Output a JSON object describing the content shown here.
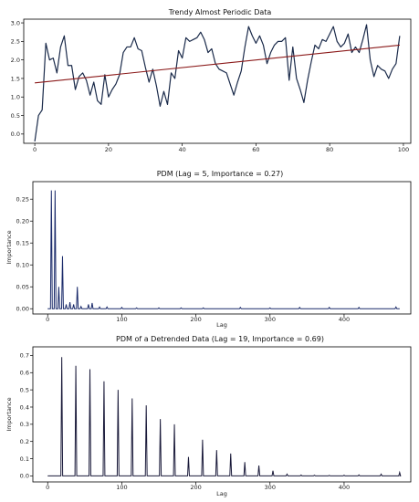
{
  "chart_data": [
    {
      "type": "line",
      "title": "Trendy Almost Periodic Data",
      "xlabel": "",
      "ylabel": "",
      "xlim": [
        -3,
        102
      ],
      "ylim": [
        -0.25,
        3.1
      ],
      "xticks": [
        0,
        20,
        40,
        60,
        80,
        100
      ],
      "yticks": [
        0.0,
        0.5,
        1.0,
        1.5,
        2.0,
        2.5,
        3.0
      ],
      "ytick_labels": [
        "0.0",
        "0.5",
        "1.0",
        "1.5",
        "2.0",
        "2.5",
        "3.0"
      ],
      "grid": false,
      "series": [
        {
          "color": "#1a2a4a",
          "x": [
            0,
            1,
            2,
            3,
            4,
            5,
            6,
            7,
            8,
            9,
            10,
            11,
            12,
            13,
            14,
            15,
            16,
            17,
            18,
            19,
            20,
            21,
            22,
            23,
            24,
            25,
            26,
            27,
            28,
            29,
            30,
            31,
            32,
            33,
            34,
            35,
            36,
            37,
            38,
            39,
            40,
            41,
            42,
            43,
            44,
            45,
            46,
            47,
            48,
            49,
            50,
            51,
            52,
            53,
            54,
            55,
            56,
            57,
            58,
            59,
            60,
            61,
            62,
            63,
            64,
            65,
            66,
            67,
            68,
            69,
            70,
            71,
            72,
            73,
            74,
            75,
            76,
            77,
            78,
            79,
            80,
            81,
            82,
            83,
            84,
            85,
            86,
            87,
            88,
            89,
            90,
            91,
            92,
            93,
            94,
            95,
            96,
            97,
            98,
            99
          ],
          "y": [
            -0.2,
            0.5,
            0.65,
            2.45,
            2.0,
            2.05,
            1.65,
            2.35,
            2.65,
            1.85,
            1.85,
            1.2,
            1.55,
            1.65,
            1.45,
            1.05,
            1.4,
            0.9,
            0.8,
            1.6,
            1.0,
            1.2,
            1.35,
            1.6,
            2.2,
            2.35,
            2.35,
            2.6,
            2.3,
            2.25,
            1.8,
            1.4,
            1.75,
            1.3,
            0.75,
            1.15,
            0.8,
            1.65,
            1.5,
            2.25,
            2.05,
            2.6,
            2.5,
            2.55,
            2.6,
            2.75,
            2.55,
            2.2,
            2.3,
            1.9,
            1.75,
            1.7,
            1.65,
            1.35,
            1.05,
            1.4,
            1.7,
            2.35,
            2.9,
            2.65,
            2.45,
            2.65,
            2.4,
            1.9,
            2.2,
            2.4,
            2.5,
            2.5,
            2.6,
            1.45,
            2.35,
            1.5,
            1.2,
            0.85,
            1.45,
            1.95,
            2.4,
            2.3,
            2.55,
            2.5,
            2.7,
            2.9,
            2.5,
            2.35,
            2.45,
            2.7,
            2.2,
            2.35,
            2.2,
            2.55,
            2.95,
            2.0,
            1.55,
            1.85,
            1.75,
            1.7,
            1.5,
            1.75,
            1.9,
            2.65
          ]
        },
        {
          "type": "trend",
          "color": "#8b1a1a",
          "x": [
            0,
            99
          ],
          "y": [
            1.38,
            2.4
          ]
        }
      ]
    },
    {
      "type": "line",
      "title": "PDM (Lag = 5, Importance = 0.27)",
      "xlabel": "Lag",
      "ylabel": "Importance",
      "xlim": [
        -20,
        490
      ],
      "ylim": [
        -0.012,
        0.29
      ],
      "xticks": [
        0,
        100,
        200,
        300,
        400
      ],
      "yticks": [
        0.0,
        0.05,
        0.1,
        0.15,
        0.2,
        0.25
      ],
      "ytick_labels": [
        "0.00",
        "0.05",
        "0.10",
        "0.15",
        "0.20",
        "0.25"
      ],
      "grid": false,
      "series": [
        {
          "color": "#1a2a6a",
          "spikes": [
            [
              5,
              0.27
            ],
            [
              10,
              0.27
            ],
            [
              15,
              0.05
            ],
            [
              20,
              0.12
            ],
            [
              25,
              0.01
            ],
            [
              30,
              0.015
            ],
            [
              35,
              0.01
            ],
            [
              40,
              0.05
            ],
            [
              45,
              0.005
            ],
            [
              55,
              0.01
            ],
            [
              60,
              0.013
            ],
            [
              70,
              0.004
            ],
            [
              80,
              0.004
            ],
            [
              100,
              0.003
            ],
            [
              120,
              0.002
            ],
            [
              150,
              0.002
            ],
            [
              180,
              0.002
            ],
            [
              210,
              0.002
            ],
            [
              260,
              0.003
            ],
            [
              300,
              0.002
            ],
            [
              340,
              0.003
            ],
            [
              380,
              0.003
            ],
            [
              420,
              0.003
            ],
            [
              470,
              0.004
            ]
          ],
          "baseline": 0.0,
          "x_end": 475
        }
      ]
    },
    {
      "type": "line",
      "title": "PDM of a Detrended Data (Lag = 19, Importance = 0.69)",
      "xlabel": "Lag",
      "ylabel": "Importance",
      "xlim": [
        -20,
        490
      ],
      "ylim": [
        -0.035,
        0.75
      ],
      "xticks": [
        0,
        100,
        200,
        300,
        400
      ],
      "yticks": [
        0.0,
        0.1,
        0.2,
        0.3,
        0.4,
        0.5,
        0.6,
        0.7
      ],
      "ytick_labels": [
        "0.0",
        "0.1",
        "0.2",
        "0.3",
        "0.4",
        "0.5",
        "0.6",
        "0.7"
      ],
      "grid": false,
      "series": [
        {
          "color": "#1a1a3a",
          "spikes": [
            [
              19,
              0.69
            ],
            [
              38,
              0.64
            ],
            [
              57,
              0.62
            ],
            [
              76,
              0.55
            ],
            [
              95,
              0.5
            ],
            [
              114,
              0.45
            ],
            [
              133,
              0.41
            ],
            [
              152,
              0.33
            ],
            [
              171,
              0.3
            ],
            [
              190,
              0.11
            ],
            [
              209,
              0.21
            ],
            [
              228,
              0.15
            ],
            [
              247,
              0.13
            ],
            [
              266,
              0.08
            ],
            [
              285,
              0.06
            ],
            [
              304,
              0.03
            ],
            [
              323,
              0.01
            ],
            [
              342,
              0.005
            ],
            [
              360,
              0.004
            ],
            [
              380,
              0.003
            ],
            [
              400,
              0.004
            ],
            [
              420,
              0.006
            ],
            [
              450,
              0.01
            ],
            [
              475,
              0.02
            ]
          ],
          "baseline": 0.0,
          "x_end": 475
        }
      ]
    }
  ]
}
